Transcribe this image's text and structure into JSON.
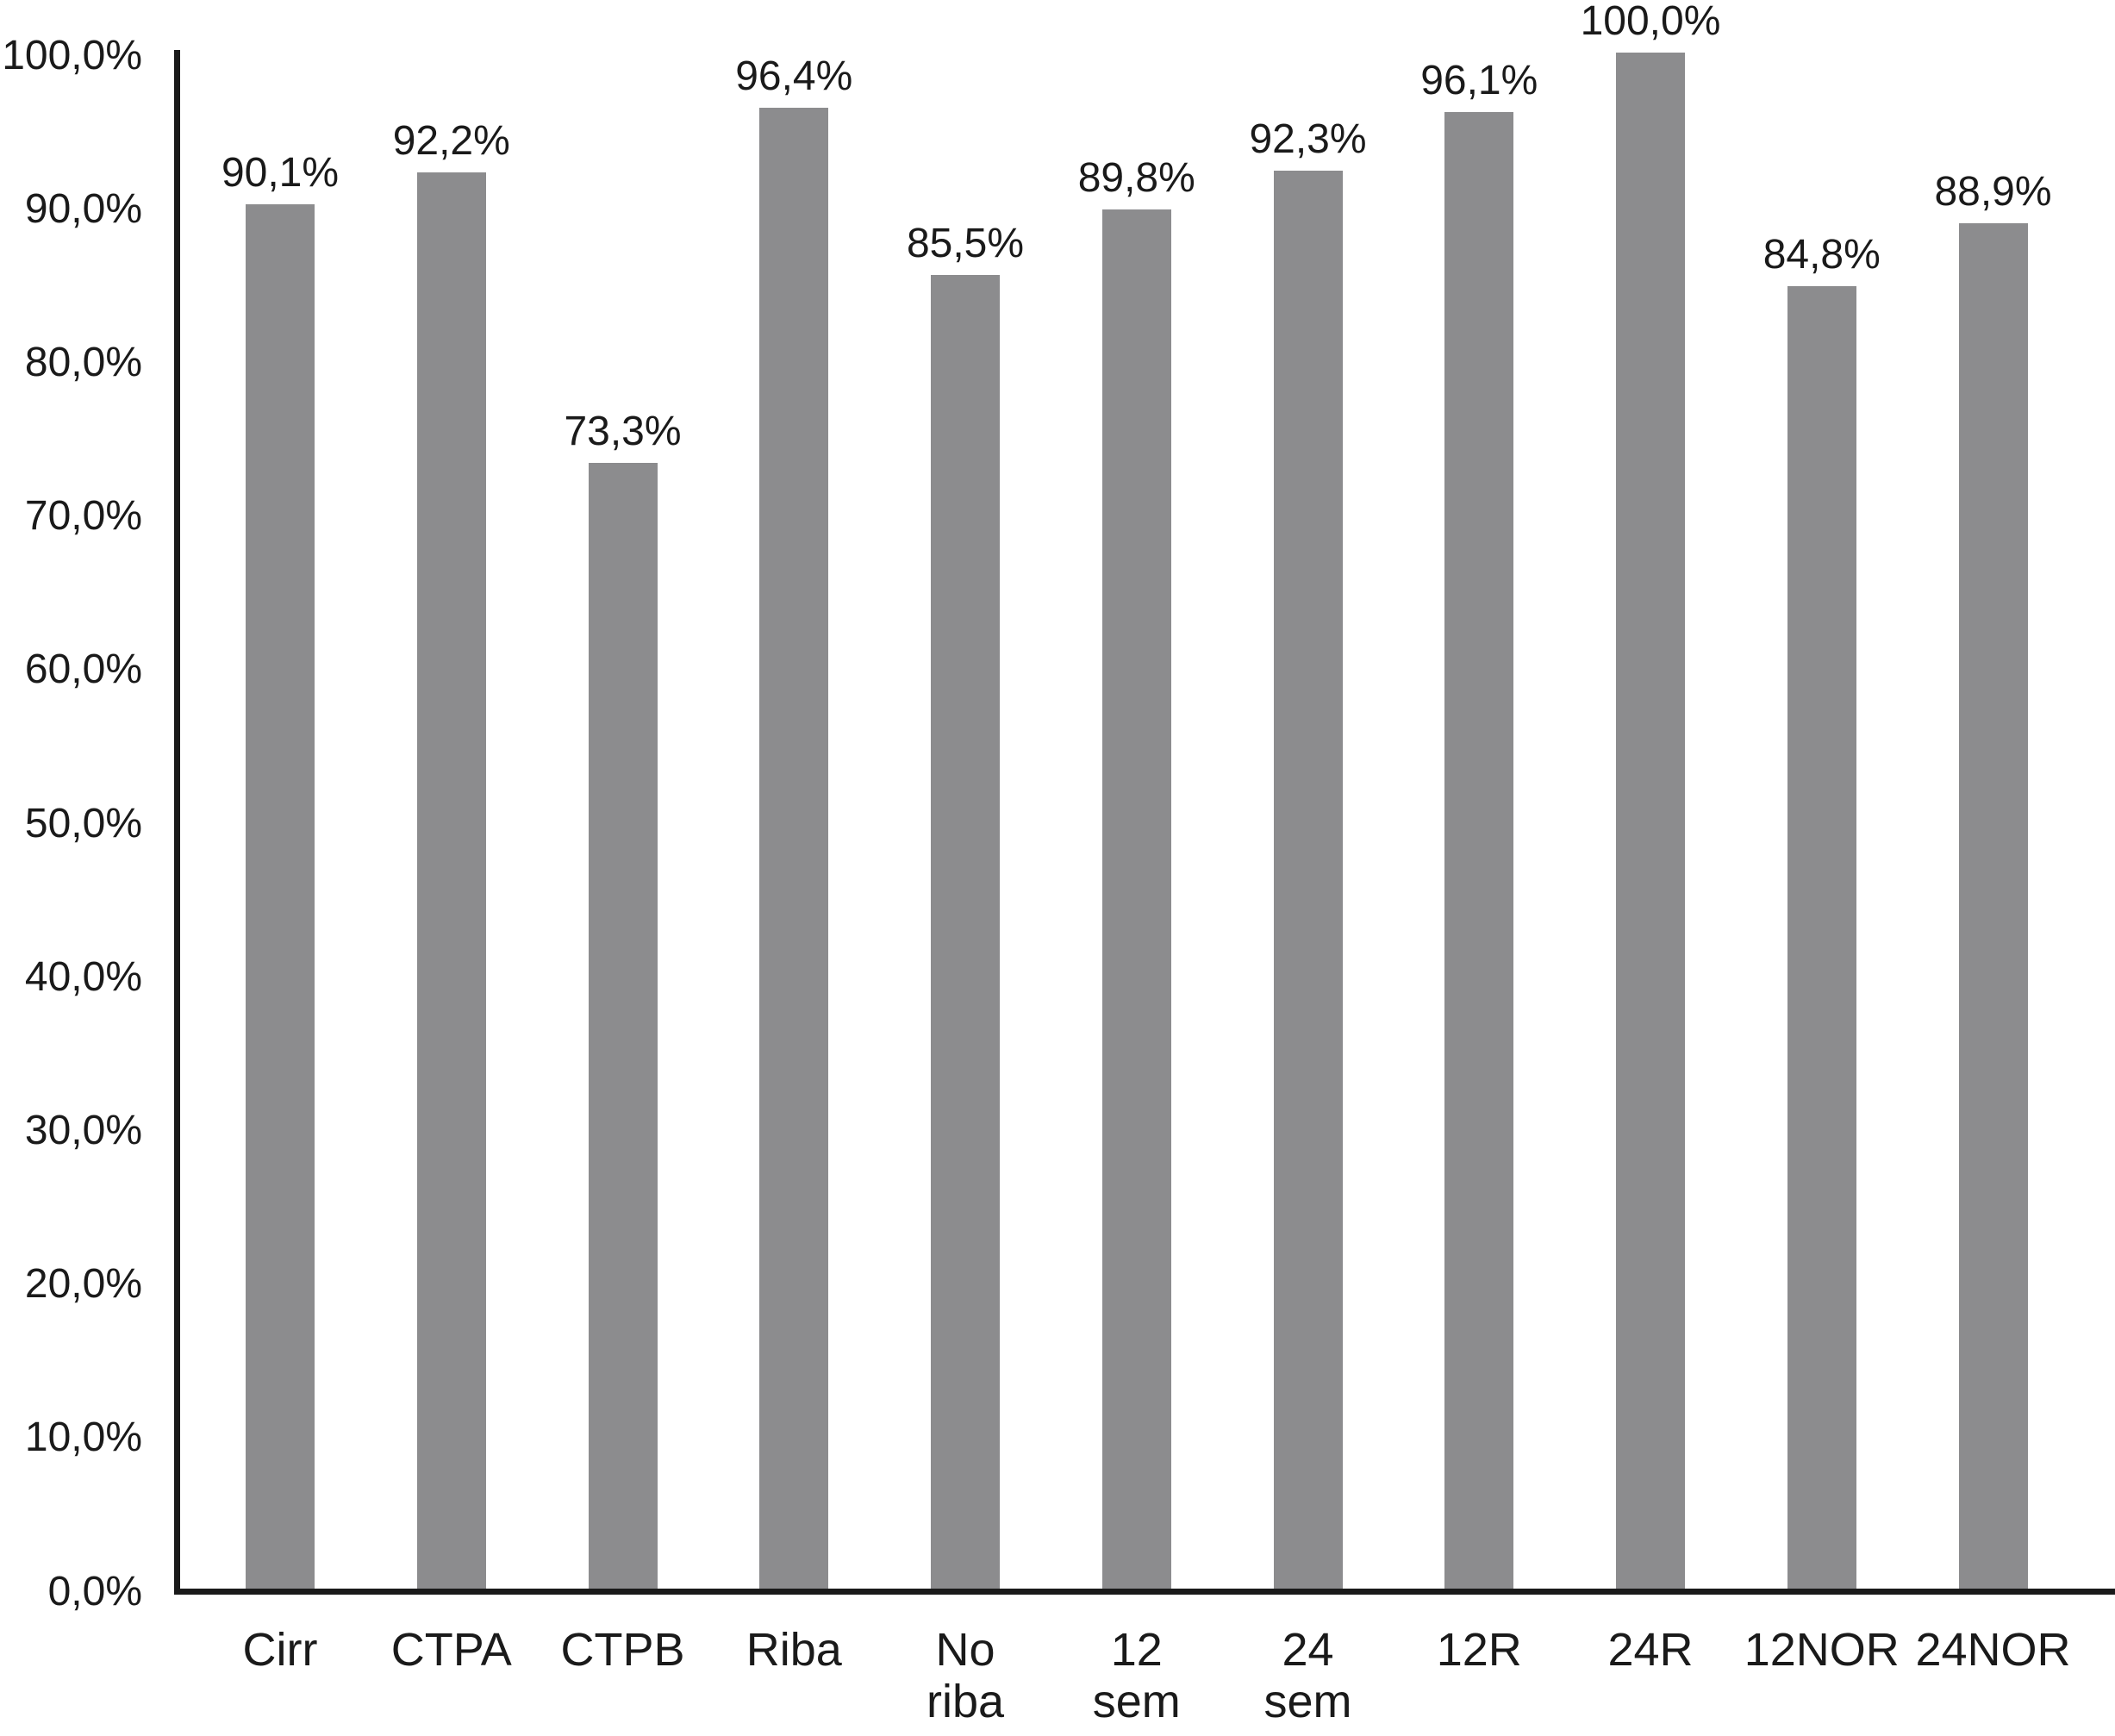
{
  "chart_data": {
    "type": "bar",
    "title": "",
    "xlabel": "",
    "ylabel": "",
    "categories": [
      "Cirr",
      "CTPA",
      "CTPB",
      "Riba",
      "No\nriba",
      "12\nsem",
      "24\nsem",
      "12R",
      "24R",
      "12NOR",
      "24NOR"
    ],
    "values": [
      90.1,
      92.2,
      73.3,
      96.4,
      85.5,
      89.8,
      92.3,
      96.1,
      100.0,
      84.8,
      88.9
    ],
    "value_labels": [
      "90,1%",
      "92,2%",
      "73,3%",
      "96,4%",
      "85,5%",
      "89,8%",
      "92,3%",
      "96,1%",
      "100,0%",
      "84,8%",
      "88,9%"
    ],
    "y_axis": {
      "ticks": [
        0,
        10,
        20,
        30,
        40,
        50,
        60,
        70,
        80,
        90,
        100
      ],
      "tick_labels": [
        "0,0%",
        "10,0%",
        "20,0%",
        "30,0%",
        "40,0%",
        "50,0%",
        "60,0%",
        "70,0%",
        "80,0%",
        "90,0%",
        "100,0%"
      ],
      "ylim": [
        0,
        100
      ]
    },
    "grid": false,
    "legend": false,
    "bar_color": "#8c8c8e",
    "axis_color": "#1a1a1a",
    "text_color": "#1a1a1a"
  }
}
